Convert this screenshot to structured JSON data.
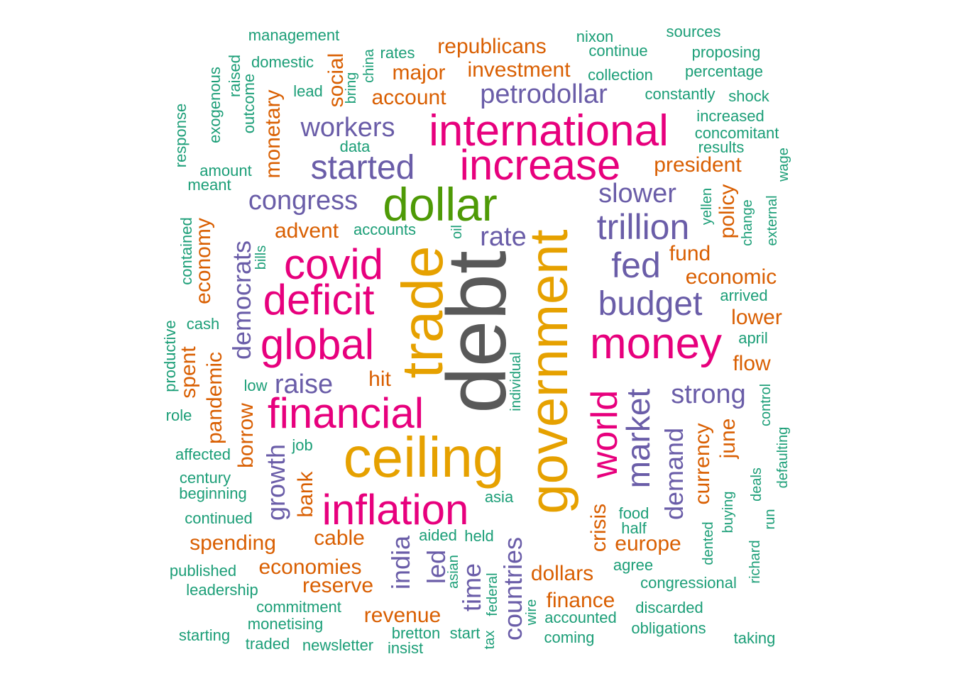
{
  "colors": {
    "grey": "#595959",
    "gold": "#E6A100",
    "pink": "#E7007D",
    "green": "#4E9A06",
    "purple": "#6A5DA8",
    "orange": "#D95F02",
    "teal": "#1B9E77"
  },
  "words": [
    {
      "text": "debt",
      "color": "grey",
      "size": 7,
      "vertical": true
    },
    {
      "text": "trade",
      "color": "gold",
      "size": 6,
      "vertical": true
    },
    {
      "text": "government",
      "color": "gold",
      "size": 6,
      "vertical": true
    },
    {
      "text": "ceiling",
      "color": "gold",
      "size": 6,
      "vertical": false
    },
    {
      "text": "international",
      "color": "pink",
      "size": 5,
      "vertical": false
    },
    {
      "text": "increase",
      "color": "pink",
      "size": 5,
      "vertical": false
    },
    {
      "text": "dollar",
      "color": "green",
      "size": 5,
      "vertical": false
    },
    {
      "text": "covid",
      "color": "pink",
      "size": 5,
      "vertical": false
    },
    {
      "text": "deficit",
      "color": "pink",
      "size": 5,
      "vertical": false
    },
    {
      "text": "global",
      "color": "pink",
      "size": 5,
      "vertical": false
    },
    {
      "text": "financial",
      "color": "pink",
      "size": 5,
      "vertical": false
    },
    {
      "text": "inflation",
      "color": "pink",
      "size": 5,
      "vertical": false
    },
    {
      "text": "money",
      "color": "pink",
      "size": 5,
      "vertical": false
    },
    {
      "text": "world",
      "color": "pink",
      "size": 4,
      "vertical": true
    },
    {
      "text": "petrodollar",
      "color": "purple",
      "size": 3,
      "vertical": false
    },
    {
      "text": "workers",
      "color": "purple",
      "size": 3,
      "vertical": false
    },
    {
      "text": "started",
      "color": "purple",
      "size": 4,
      "vertical": false
    },
    {
      "text": "congress",
      "color": "purple",
      "size": 3,
      "vertical": false
    },
    {
      "text": "rate",
      "color": "purple",
      "size": 3,
      "vertical": false
    },
    {
      "text": "slower",
      "color": "purple",
      "size": 3,
      "vertical": false
    },
    {
      "text": "trillion",
      "color": "purple",
      "size": 4,
      "vertical": false
    },
    {
      "text": "fed",
      "color": "purple",
      "size": 4,
      "vertical": false
    },
    {
      "text": "budget",
      "color": "purple",
      "size": 4,
      "vertical": false
    },
    {
      "text": "democrats",
      "color": "purple",
      "size": 3,
      "vertical": true
    },
    {
      "text": "raise",
      "color": "purple",
      "size": 3,
      "vertical": false
    },
    {
      "text": "strong",
      "color": "purple",
      "size": 3,
      "vertical": false
    },
    {
      "text": "market",
      "color": "purple",
      "size": 4,
      "vertical": true
    },
    {
      "text": "demand",
      "color": "purple",
      "size": 3,
      "vertical": true
    },
    {
      "text": "growth",
      "color": "purple",
      "size": 3,
      "vertical": true
    },
    {
      "text": "india",
      "color": "purple",
      "size": 3,
      "vertical": true
    },
    {
      "text": "led",
      "color": "purple",
      "size": 3,
      "vertical": true
    },
    {
      "text": "time",
      "color": "purple",
      "size": 3,
      "vertical": true
    },
    {
      "text": "countries",
      "color": "purple",
      "size": 3,
      "vertical": true
    },
    {
      "text": "republicans",
      "color": "orange",
      "size": 2,
      "vertical": false
    },
    {
      "text": "investment",
      "color": "orange",
      "size": 2,
      "vertical": false
    },
    {
      "text": "major",
      "color": "orange",
      "size": 2,
      "vertical": false
    },
    {
      "text": "account",
      "color": "orange",
      "size": 2,
      "vertical": false
    },
    {
      "text": "social",
      "color": "orange",
      "size": 2,
      "vertical": true
    },
    {
      "text": "monetary",
      "color": "orange",
      "size": 2,
      "vertical": true
    },
    {
      "text": "president",
      "color": "orange",
      "size": 2,
      "vertical": false
    },
    {
      "text": "advent",
      "color": "orange",
      "size": 2,
      "vertical": false
    },
    {
      "text": "policy",
      "color": "orange",
      "size": 2,
      "vertical": true
    },
    {
      "text": "fund",
      "color": "orange",
      "size": 2,
      "vertical": false
    },
    {
      "text": "economic",
      "color": "orange",
      "size": 2,
      "vertical": false
    },
    {
      "text": "lower",
      "color": "orange",
      "size": 2,
      "vertical": false
    },
    {
      "text": "flow",
      "color": "orange",
      "size": 2,
      "vertical": false
    },
    {
      "text": "economy",
      "color": "orange",
      "size": 2,
      "vertical": true
    },
    {
      "text": "spent",
      "color": "orange",
      "size": 2,
      "vertical": true
    },
    {
      "text": "pandemic",
      "color": "orange",
      "size": 2,
      "vertical": true
    },
    {
      "text": "borrow",
      "color": "orange",
      "size": 2,
      "vertical": true
    },
    {
      "text": "hit",
      "color": "orange",
      "size": 2,
      "vertical": false
    },
    {
      "text": "bank",
      "color": "orange",
      "size": 2,
      "vertical": true
    },
    {
      "text": "currency",
      "color": "orange",
      "size": 2,
      "vertical": true
    },
    {
      "text": "june",
      "color": "orange",
      "size": 2,
      "vertical": true
    },
    {
      "text": "crisis",
      "color": "orange",
      "size": 2,
      "vertical": true
    },
    {
      "text": "europe",
      "color": "orange",
      "size": 2,
      "vertical": false
    },
    {
      "text": "spending",
      "color": "orange",
      "size": 2,
      "vertical": false
    },
    {
      "text": "cable",
      "color": "orange",
      "size": 2,
      "vertical": false
    },
    {
      "text": "economies",
      "color": "orange",
      "size": 2,
      "vertical": false
    },
    {
      "text": "reserve",
      "color": "orange",
      "size": 2,
      "vertical": false
    },
    {
      "text": "revenue",
      "color": "orange",
      "size": 2,
      "vertical": false
    },
    {
      "text": "dollars",
      "color": "orange",
      "size": 2,
      "vertical": false
    },
    {
      "text": "finance",
      "color": "orange",
      "size": 2,
      "vertical": false
    },
    {
      "text": "management",
      "color": "teal",
      "size": 1,
      "vertical": false
    },
    {
      "text": "domestic",
      "color": "teal",
      "size": 1,
      "vertical": false
    },
    {
      "text": "rates",
      "color": "teal",
      "size": 1,
      "vertical": false
    },
    {
      "text": "china",
      "color": "teal",
      "size": 1,
      "vertical": true
    },
    {
      "text": "bring",
      "color": "teal",
      "size": 1,
      "vertical": true
    },
    {
      "text": "lead",
      "color": "teal",
      "size": 1,
      "vertical": false
    },
    {
      "text": "raised",
      "color": "teal",
      "size": 1,
      "vertical": true
    },
    {
      "text": "outcome",
      "color": "teal",
      "size": 1,
      "vertical": true
    },
    {
      "text": "exogenous",
      "color": "teal",
      "size": 1,
      "vertical": true
    },
    {
      "text": "response",
      "color": "teal",
      "size": 1,
      "vertical": true
    },
    {
      "text": "data",
      "color": "teal",
      "size": 1,
      "vertical": false
    },
    {
      "text": "amount",
      "color": "teal",
      "size": 1,
      "vertical": false
    },
    {
      "text": "meant",
      "color": "teal",
      "size": 1,
      "vertical": false
    },
    {
      "text": "accounts",
      "color": "teal",
      "size": 1,
      "vertical": false
    },
    {
      "text": "oil",
      "color": "teal",
      "size": 1,
      "vertical": true
    },
    {
      "text": "bills",
      "color": "teal",
      "size": 1,
      "vertical": true
    },
    {
      "text": "contained",
      "color": "teal",
      "size": 1,
      "vertical": true
    },
    {
      "text": "cash",
      "color": "teal",
      "size": 1,
      "vertical": false
    },
    {
      "text": "productive",
      "color": "teal",
      "size": 1,
      "vertical": true
    },
    {
      "text": "low",
      "color": "teal",
      "size": 1,
      "vertical": false
    },
    {
      "text": "role",
      "color": "teal",
      "size": 1,
      "vertical": false
    },
    {
      "text": "job",
      "color": "teal",
      "size": 1,
      "vertical": false
    },
    {
      "text": "affected",
      "color": "teal",
      "size": 1,
      "vertical": false
    },
    {
      "text": "century",
      "color": "teal",
      "size": 1,
      "vertical": false
    },
    {
      "text": "beginning",
      "color": "teal",
      "size": 1,
      "vertical": false
    },
    {
      "text": "continued",
      "color": "teal",
      "size": 1,
      "vertical": false
    },
    {
      "text": "published",
      "color": "teal",
      "size": 1,
      "vertical": false
    },
    {
      "text": "leadership",
      "color": "teal",
      "size": 1,
      "vertical": false
    },
    {
      "text": "commitment",
      "color": "teal",
      "size": 1,
      "vertical": false
    },
    {
      "text": "monetising",
      "color": "teal",
      "size": 1,
      "vertical": false
    },
    {
      "text": "starting",
      "color": "teal",
      "size": 1,
      "vertical": false
    },
    {
      "text": "traded",
      "color": "teal",
      "size": 1,
      "vertical": false
    },
    {
      "text": "newsletter",
      "color": "teal",
      "size": 1,
      "vertical": false
    },
    {
      "text": "bretton",
      "color": "teal",
      "size": 1,
      "vertical": false
    },
    {
      "text": "insist",
      "color": "teal",
      "size": 1,
      "vertical": false
    },
    {
      "text": "start",
      "color": "teal",
      "size": 1,
      "vertical": false
    },
    {
      "text": "tax",
      "color": "teal",
      "size": 1,
      "vertical": true
    },
    {
      "text": "federal",
      "color": "teal",
      "size": 1,
      "vertical": true
    },
    {
      "text": "asian",
      "color": "teal",
      "size": 1,
      "vertical": true
    },
    {
      "text": "wire",
      "color": "teal",
      "size": 1,
      "vertical": true
    },
    {
      "text": "aided",
      "color": "teal",
      "size": 1,
      "vertical": false
    },
    {
      "text": "held",
      "color": "teal",
      "size": 1,
      "vertical": false
    },
    {
      "text": "asia",
      "color": "teal",
      "size": 1,
      "vertical": false
    },
    {
      "text": "individual",
      "color": "teal",
      "size": 1,
      "vertical": true
    },
    {
      "text": "accounted",
      "color": "teal",
      "size": 1,
      "vertical": false
    },
    {
      "text": "coming",
      "color": "teal",
      "size": 1,
      "vertical": false
    },
    {
      "text": "food",
      "color": "teal",
      "size": 1,
      "vertical": false
    },
    {
      "text": "half",
      "color": "teal",
      "size": 1,
      "vertical": false
    },
    {
      "text": "agree",
      "color": "teal",
      "size": 1,
      "vertical": false
    },
    {
      "text": "congressional",
      "color": "teal",
      "size": 1,
      "vertical": false
    },
    {
      "text": "discarded",
      "color": "teal",
      "size": 1,
      "vertical": false
    },
    {
      "text": "obligations",
      "color": "teal",
      "size": 1,
      "vertical": false
    },
    {
      "text": "taking",
      "color": "teal",
      "size": 1,
      "vertical": false
    },
    {
      "text": "dented",
      "color": "teal",
      "size": 1,
      "vertical": true
    },
    {
      "text": "buying",
      "color": "teal",
      "size": 1,
      "vertical": true
    },
    {
      "text": "deals",
      "color": "teal",
      "size": 1,
      "vertical": true
    },
    {
      "text": "richard",
      "color": "teal",
      "size": 1,
      "vertical": true
    },
    {
      "text": "run",
      "color": "teal",
      "size": 1,
      "vertical": true
    },
    {
      "text": "defaulting",
      "color": "teal",
      "size": 1,
      "vertical": true
    },
    {
      "text": "control",
      "color": "teal",
      "size": 1,
      "vertical": true
    },
    {
      "text": "april",
      "color": "teal",
      "size": 1,
      "vertical": false
    },
    {
      "text": "arrived",
      "color": "teal",
      "size": 1,
      "vertical": false
    },
    {
      "text": "yellen",
      "color": "teal",
      "size": 1,
      "vertical": true
    },
    {
      "text": "change",
      "color": "teal",
      "size": 1,
      "vertical": true
    },
    {
      "text": "external",
      "color": "teal",
      "size": 1,
      "vertical": true
    },
    {
      "text": "wage",
      "color": "teal",
      "size": 1,
      "vertical": true
    },
    {
      "text": "results",
      "color": "teal",
      "size": 1,
      "vertical": false
    },
    {
      "text": "concomitant",
      "color": "teal",
      "size": 1,
      "vertical": false
    },
    {
      "text": "increased",
      "color": "teal",
      "size": 1,
      "vertical": false
    },
    {
      "text": "shock",
      "color": "teal",
      "size": 1,
      "vertical": false
    },
    {
      "text": "constantly",
      "color": "teal",
      "size": 1,
      "vertical": false
    },
    {
      "text": "percentage",
      "color": "teal",
      "size": 1,
      "vertical": false
    },
    {
      "text": "proposing",
      "color": "teal",
      "size": 1,
      "vertical": false
    },
    {
      "text": "sources",
      "color": "teal",
      "size": 1,
      "vertical": false
    },
    {
      "text": "nixon",
      "color": "teal",
      "size": 1,
      "vertical": false
    },
    {
      "text": "continue",
      "color": "teal",
      "size": 1,
      "vertical": false
    },
    {
      "text": "collection",
      "color": "teal",
      "size": 1,
      "vertical": false
    }
  ]
}
